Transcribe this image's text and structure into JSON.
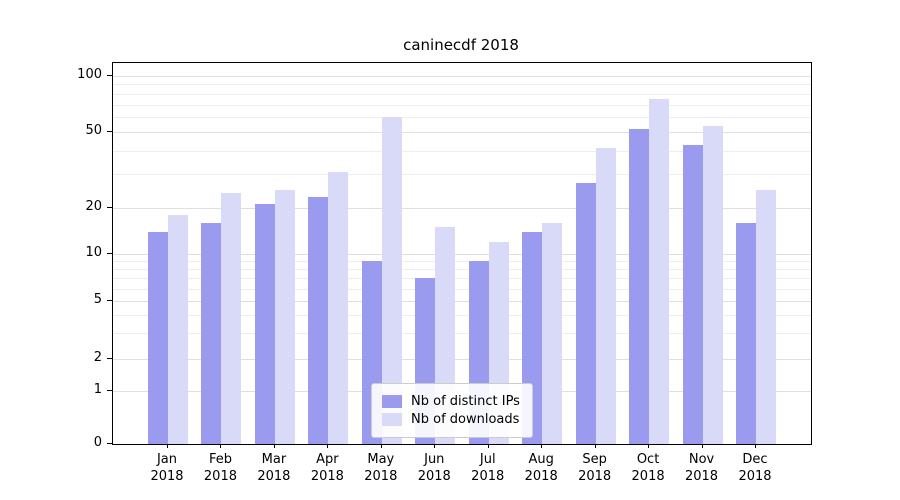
{
  "title": "caninecdf 2018",
  "chart_data": {
    "type": "bar",
    "title": "caninecdf 2018",
    "categories": [
      "Jan",
      "Feb",
      "Mar",
      "Apr",
      "May",
      "Jun",
      "Jul",
      "Aug",
      "Sep",
      "Oct",
      "Nov",
      "Dec"
    ],
    "category_year": "2018",
    "series": [
      {
        "name": "Nb of distinct IPs",
        "color": "#9a9aee",
        "values": [
          14,
          16,
          21,
          23,
          9,
          7,
          9,
          14,
          27,
          52,
          43,
          16
        ]
      },
      {
        "name": "Nb of downloads",
        "color": "#d9d9f8",
        "values": [
          18,
          24,
          25,
          31,
          60,
          15,
          12,
          16,
          41,
          75,
          54,
          25
        ]
      }
    ],
    "yscale": "symlog",
    "yticks": [
      0,
      1,
      2,
      5,
      10,
      20,
      50,
      100
    ],
    "ytick_labels": [
      "0",
      "1",
      "2",
      "5",
      "10",
      "20",
      "50",
      "100"
    ],
    "minor_grid_values": [
      3,
      4,
      6,
      7,
      8,
      9,
      30,
      40,
      60,
      70,
      80,
      90
    ],
    "grid": true,
    "legend_position": "lower center",
    "xlabel": "",
    "ylabel": "",
    "ylim": [
      0,
      110
    ],
    "colors": {
      "grid_major": "#dfdfdf",
      "grid_minor": "#eeeeee",
      "axis": "#000000",
      "background": "#ffffff"
    }
  }
}
